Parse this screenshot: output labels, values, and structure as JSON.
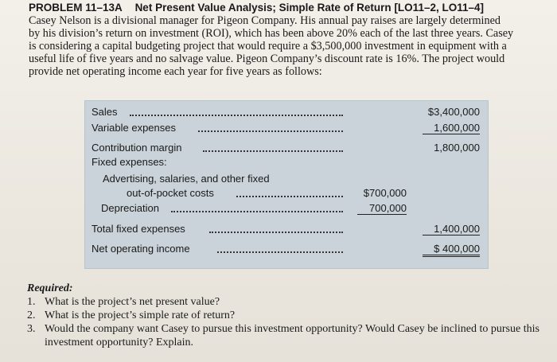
{
  "header": {
    "problem": "PROBLEM 11–13A",
    "title": "Net Present Value Analysis; Simple Rate of Return",
    "objectives": "[LO11–2, LO11–4]"
  },
  "intro": [
    "Casey Nelson is a divisional manager for Pigeon Company. His annual pay raises are largely determined",
    "by his division’s return on investment (ROI), which has been above 20% each of the last three years. Casey",
    "is considering a capital budgeting project that would require a $3,500,000 investment in equipment with a",
    "useful life of five years and no salvage value. Pigeon Company’s discount rate is 16%. The project would",
    "provide net operating income each year for five years as follows:"
  ],
  "table": {
    "sales": {
      "label": "Sales",
      "value": "$3,400,000"
    },
    "variable": {
      "label": "Variable expenses",
      "value": "1,600,000"
    },
    "contribution": {
      "label": "Contribution margin",
      "value": "1,800,000"
    },
    "fixed": {
      "label": "Fixed expenses:"
    },
    "advertising": {
      "label1": "Advertising, salaries, and other fixed",
      "label2": "out-of-pocket costs",
      "value": "$700,000"
    },
    "depreciation": {
      "label": "Depreciation",
      "value": "700,000"
    },
    "total_fixed": {
      "label": "Total fixed expenses",
      "value": "1,400,000"
    },
    "noi": {
      "label": "Net operating income",
      "value": "$ 400,000"
    }
  },
  "required": {
    "title": "Required:",
    "questions": [
      {
        "num": "1.",
        "text": "What is the project’s net present value?"
      },
      {
        "num": "2.",
        "text": "What is the project’s simple rate of return?"
      },
      {
        "num": "3.",
        "text": "Would the company want Casey to pursue this investment opportunity? Would Casey be inclined to pursue this investment opportunity? Explain."
      }
    ]
  }
}
